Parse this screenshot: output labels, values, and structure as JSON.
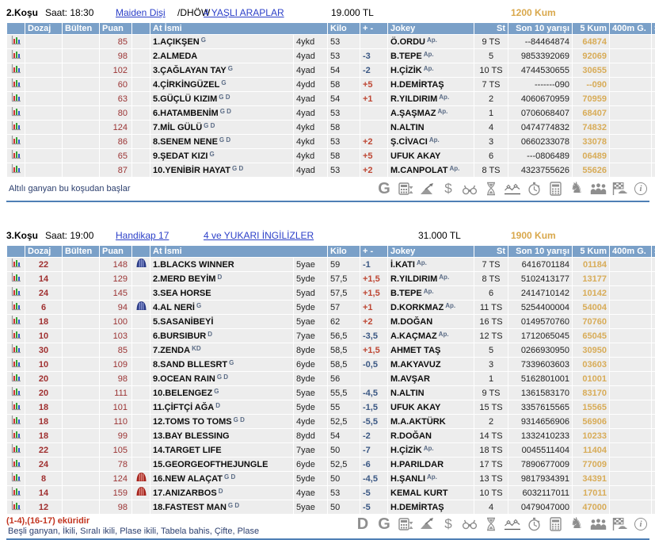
{
  "columns": {
    "dozaj": "Dozaj",
    "bulten": "Bülten",
    "puan": "Puan",
    "at_ismi": "At İsmi",
    "kilo": "Kilo",
    "plus_minus": "+ -",
    "jokey": "Jokey",
    "st": "St",
    "son10": "Son 10 yarışı",
    "kum5": "5 Kum",
    "g400": "400m G.",
    "s": "S"
  },
  "colors": {
    "header_blue": "#7AA0C8",
    "gold": "#D9A84C",
    "link_blue": "#2B3FC8",
    "row_gray": "#EDEDED",
    "ekuri_red": "#C2341F",
    "note_navy": "#2C3F6E"
  },
  "races": [
    {
      "title": "2.Koşu",
      "saat": "Saat: 18:30",
      "race_type_link": "Maiden Dişi",
      "race_type_suffix": "/DHÖW",
      "group_link": "4 YAŞLI ARAPLAR",
      "purse": "19.000 TL",
      "track": "1200 Kum",
      "footer_note": "Altılı ganyan bu koşudan başlar",
      "icons": [
        "ganyan-g",
        "agf-calculator",
        "trend",
        "money",
        "binoculars",
        "hourglass",
        "form-chart",
        "stopwatch",
        "calculator",
        "horse",
        "crowd",
        "finish-flag",
        "info"
      ],
      "rows": [
        {
          "dozaj": "",
          "puan": "85",
          "silk": "",
          "name": "1.AÇIKŞEN",
          "sup": "G",
          "age": "4ykd",
          "kilo": "53",
          "delta": "",
          "jokey": "Ö.ORDU",
          "ap": "Ap.",
          "st": "9 TS",
          "son10": "--84464874",
          "kum5": "64874"
        },
        {
          "dozaj": "",
          "puan": "98",
          "silk": "",
          "name": "2.ALMEDA",
          "sup": "",
          "age": "4yad",
          "kilo": "53",
          "delta": "-3",
          "jokey": "B.TEPE",
          "ap": "Ap.",
          "st": "5",
          "son10": "9853392069",
          "kum5": "92069"
        },
        {
          "dozaj": "",
          "puan": "102",
          "silk": "",
          "name": "3.ÇAĞLAYAN TAY",
          "sup": "G",
          "age": "4yad",
          "kilo": "54",
          "delta": "-2",
          "jokey": "H.ÇİZİK",
          "ap": "Ap.",
          "st": "10 TS",
          "son10": "4744530655",
          "kum5": "30655"
        },
        {
          "dozaj": "",
          "puan": "60",
          "silk": "",
          "name": "4.ÇİRKİNGÜZEL",
          "sup": "G",
          "age": "4ydd",
          "kilo": "58",
          "delta": "+5",
          "jokey": "H.DEMİRTAŞ",
          "ap": "",
          "st": "7 TS",
          "son10": "-------090",
          "kum5": "--090"
        },
        {
          "dozaj": "",
          "puan": "63",
          "silk": "",
          "name": "5.GÜÇLÜ KIZIM",
          "sup": "G D",
          "age": "4yad",
          "kilo": "54",
          "delta": "+1",
          "jokey": "R.YILDIRIM",
          "ap": "Ap.",
          "st": "2",
          "son10": "4060670959",
          "kum5": "70959"
        },
        {
          "dozaj": "",
          "puan": "80",
          "silk": "",
          "name": "6.HATAMBENİM",
          "sup": "G D",
          "age": "4yad",
          "kilo": "53",
          "delta": "",
          "jokey": "A.ŞAŞMAZ",
          "ap": "Ap.",
          "st": "1",
          "son10": "0706068407",
          "kum5": "68407"
        },
        {
          "dozaj": "",
          "puan": "124",
          "silk": "",
          "name": "7.MİL GÜLÜ",
          "sup": "G D",
          "age": "4ykd",
          "kilo": "58",
          "delta": "",
          "jokey": "N.ALTIN",
          "ap": "",
          "st": "4",
          "son10": "0474774832",
          "kum5": "74832"
        },
        {
          "dozaj": "",
          "puan": "86",
          "silk": "",
          "name": "8.SENEM NENE",
          "sup": "G D",
          "age": "4ykd",
          "kilo": "53",
          "delta": "+2",
          "jokey": "Ş.CİVACI",
          "ap": "Ap.",
          "st": "3",
          "son10": "0660233078",
          "kum5": "33078"
        },
        {
          "dozaj": "",
          "puan": "65",
          "silk": "",
          "name": "9.ŞEDAT KIZI",
          "sup": "G",
          "age": "4ykd",
          "kilo": "58",
          "delta": "+5",
          "jokey": "UFUK AKAY",
          "ap": "",
          "st": "6",
          "son10": "---0806489",
          "kum5": "06489"
        },
        {
          "dozaj": "",
          "puan": "87",
          "silk": "",
          "name": "10.YENİBİR HAYAT",
          "sup": "G D",
          "age": "4yad",
          "kilo": "53",
          "delta": "+2",
          "jokey": "M.CANPOLAT",
          "ap": "Ap.",
          "st": "8 TS",
          "son10": "4323755626",
          "kum5": "55626"
        }
      ]
    },
    {
      "title": "3.Koşu",
      "saat": "Saat: 19:00",
      "race_type_link": "Handikap 17",
      "race_type_suffix": "",
      "group_link": "4 ve YUKARI İNGİLİZLER",
      "purse": "31.000 TL",
      "track": "1900 Kum",
      "ekuri_note": "(1-4),(16-17) eküridir",
      "bets_note": "Beşli ganyan, İkili, Sıralı ikili, Plase ikili, Tabela bahis, Çifte, Plase",
      "icons": [
        "dozaj-d",
        "ganyan-g",
        "agf-calculator",
        "trend",
        "money",
        "binoculars",
        "hourglass",
        "form-chart",
        "stopwatch",
        "calculator",
        "horse",
        "crowd",
        "finish-flag",
        "info"
      ],
      "rows": [
        {
          "dozaj": "22",
          "puan": "148",
          "silk": "blue",
          "name": "1.BLACKS WINNER",
          "sup": "",
          "age": "5yae",
          "kilo": "59",
          "delta": "-1",
          "jokey": "İ.KATI",
          "ap": "Ap.",
          "st": "7 TS",
          "son10": "6416701184",
          "kum5": "01184"
        },
        {
          "dozaj": "14",
          "puan": "129",
          "silk": "",
          "name": "2.MERD BEYİM",
          "sup": "D",
          "age": "5yde",
          "kilo": "57,5",
          "delta": "+1,5",
          "jokey": "R.YILDIRIM",
          "ap": "Ap.",
          "st": "8 TS",
          "son10": "5102413177",
          "kum5": "13177"
        },
        {
          "dozaj": "24",
          "puan": "145",
          "silk": "",
          "name": "3.SEA HORSE",
          "sup": "",
          "age": "5yad",
          "kilo": "57,5",
          "delta": "+1,5",
          "jokey": "B.TEPE",
          "ap": "Ap.",
          "st": "6",
          "son10": "2414710142",
          "kum5": "10142"
        },
        {
          "dozaj": "6",
          "puan": "94",
          "silk": "blue",
          "name": "4.AL NERİ",
          "sup": "G",
          "age": "5yde",
          "kilo": "57",
          "delta": "+1",
          "jokey": "D.KORKMAZ",
          "ap": "Ap.",
          "st": "11 TS",
          "son10": "5254400004",
          "kum5": "54004"
        },
        {
          "dozaj": "18",
          "puan": "100",
          "silk": "",
          "name": "5.SASANİBEYİ",
          "sup": "",
          "age": "5yae",
          "kilo": "62",
          "delta": "+2",
          "jokey": "M.DOĞAN",
          "ap": "",
          "st": "16 TS",
          "son10": "0149570760",
          "kum5": "70760"
        },
        {
          "dozaj": "10",
          "puan": "103",
          "silk": "",
          "name": "6.BURSIBUR",
          "sup": "D",
          "age": "7yae",
          "kilo": "56,5",
          "delta": "-3,5",
          "jokey": "A.KAÇMAZ",
          "ap": "Ap.",
          "st": "12 TS",
          "son10": "1712065045",
          "kum5": "65045"
        },
        {
          "dozaj": "30",
          "puan": "85",
          "silk": "",
          "name": "7.ZENDA",
          "sup": "KD",
          "age": "8yde",
          "kilo": "58,5",
          "delta": "+1,5",
          "jokey": "AHMET TAŞ",
          "ap": "",
          "st": "5",
          "son10": "0266930950",
          "kum5": "30950"
        },
        {
          "dozaj": "10",
          "puan": "109",
          "silk": "",
          "name": "8.SAND BLLESRT",
          "sup": "G",
          "age": "6yde",
          "kilo": "58,5",
          "delta": "-0,5",
          "jokey": "M.AKYAVUZ",
          "ap": "",
          "st": "3",
          "son10": "7339603603",
          "kum5": "03603"
        },
        {
          "dozaj": "20",
          "puan": "98",
          "silk": "",
          "name": "9.OCEAN RAIN",
          "sup": "G D",
          "age": "8yde",
          "kilo": "56",
          "delta": "",
          "jokey": "M.AVŞAR",
          "ap": "",
          "st": "1",
          "son10": "5162801001",
          "kum5": "01001"
        },
        {
          "dozaj": "20",
          "puan": "111",
          "silk": "",
          "name": "10.BELENGEZ",
          "sup": "G",
          "age": "5yae",
          "kilo": "55,5",
          "delta": "-4,5",
          "jokey": "N.ALTIN",
          "ap": "",
          "st": "9 TS",
          "son10": "1361583170",
          "kum5": "83170"
        },
        {
          "dozaj": "18",
          "puan": "101",
          "silk": "",
          "name": "11.ÇİFTÇİ AĞA",
          "sup": "D",
          "age": "5yde",
          "kilo": "55",
          "delta": "-1,5",
          "jokey": "UFUK AKAY",
          "ap": "",
          "st": "15 TS",
          "son10": "3357615565",
          "kum5": "15565"
        },
        {
          "dozaj": "18",
          "puan": "110",
          "silk": "",
          "name": "12.TOMS TO TOMS",
          "sup": "G D",
          "age": "4yde",
          "kilo": "52,5",
          "delta": "-5,5",
          "jokey": "M.A.AKTÜRK",
          "ap": "",
          "st": "2",
          "son10": "9314656906",
          "kum5": "56906"
        },
        {
          "dozaj": "18",
          "puan": "99",
          "silk": "",
          "name": "13.BAY BLESSING",
          "sup": "",
          "age": "8ydd",
          "kilo": "54",
          "delta": "-2",
          "jokey": "R.DOĞAN",
          "ap": "",
          "st": "14 TS",
          "son10": "1332410233",
          "kum5": "10233"
        },
        {
          "dozaj": "22",
          "puan": "105",
          "silk": "",
          "name": "14.TARGET LIFE",
          "sup": "",
          "age": "7yae",
          "kilo": "50",
          "delta": "-7",
          "jokey": "H.ÇİZİK",
          "ap": "Ap.",
          "st": "18 TS",
          "son10": "0045511404",
          "kum5": "11404"
        },
        {
          "dozaj": "24",
          "puan": "78",
          "silk": "",
          "name": "15.GEORGEOFTHEJUNGLE",
          "sup": "",
          "age": "6yde",
          "kilo": "52,5",
          "delta": "-6",
          "jokey": "H.PARILDAR",
          "ap": "",
          "st": "17 TS",
          "son10": "7890677009",
          "kum5": "77009"
        },
        {
          "dozaj": "8",
          "puan": "124",
          "silk": "red",
          "name": "16.NEW ALAÇAT",
          "sup": "G D",
          "age": "5yde",
          "kilo": "50",
          "delta": "-4,5",
          "jokey": "H.ŞANLI",
          "ap": "Ap.",
          "st": "13 TS",
          "son10": "9817934391",
          "kum5": "34391"
        },
        {
          "dozaj": "14",
          "puan": "159",
          "silk": "red",
          "name": "17.ANIZARBOS",
          "sup": "D",
          "age": "4yae",
          "kilo": "53",
          "delta": "-5",
          "jokey": "KEMAL KURT",
          "ap": "",
          "st": "10 TS",
          "son10": "6032117011",
          "kum5": "17011"
        },
        {
          "dozaj": "12",
          "puan": "98",
          "silk": "",
          "name": "18.FASTEST MAN",
          "sup": "G D",
          "age": "5yae",
          "kilo": "50",
          "delta": "-5",
          "jokey": "H.DEMİRTAŞ",
          "ap": "",
          "st": "4",
          "son10": "0479047000",
          "kum5": "47000"
        }
      ]
    }
  ]
}
